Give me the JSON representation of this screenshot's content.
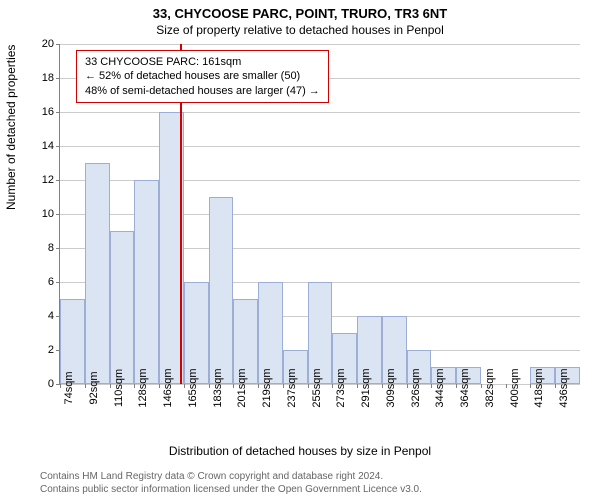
{
  "title1": "33, CHYCOOSE PARC, POINT, TRURO, TR3 6NT",
  "title2": "Size of property relative to detached houses in Penpol",
  "ylabel": "Number of detached properties",
  "xlabel": "Distribution of detached houses by size in Penpol",
  "attribution_line1": "Contains HM Land Registry data © Crown copyright and database right 2024.",
  "attribution_line2": "Contains public sector information licensed under the Open Government Licence v3.0.",
  "chart": {
    "type": "histogram",
    "ylim": [
      0,
      20
    ],
    "ytick_step": 2,
    "background_color": "#ffffff",
    "grid_color": "#cccccc",
    "bar_fill": "#dbe4f3",
    "bar_border": "#9caed6",
    "marker_color": "#d00000",
    "marker_x_sqm": 161,
    "x_start_sqm": 74,
    "x_step_sqm": 18,
    "x_labels": [
      "74sqm",
      "92sqm",
      "110sqm",
      "128sqm",
      "146sqm",
      "165sqm",
      "183sqm",
      "201sqm",
      "219sqm",
      "237sqm",
      "255sqm",
      "273sqm",
      "291sqm",
      "309sqm",
      "326sqm",
      "344sqm",
      "364sqm",
      "382sqm",
      "400sqm",
      "418sqm",
      "436sqm"
    ],
    "bar_values": [
      5,
      13,
      9,
      12,
      16,
      6,
      11,
      5,
      6,
      2,
      6,
      3,
      4,
      4,
      2,
      1,
      1,
      0,
      0,
      1,
      1
    ],
    "info_box": {
      "line1": "33 CHYCOOSE PARC: 161sqm",
      "line2": "← 52% of detached houses are smaller (50)",
      "line3": "48% of semi-detached houses are larger (47) →"
    }
  }
}
